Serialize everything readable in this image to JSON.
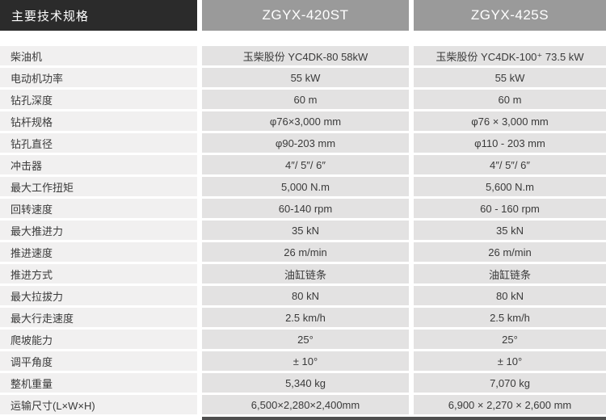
{
  "header": {
    "title": "主要技术规格",
    "columns": [
      "ZGYX-420ST",
      "ZGYX-425S"
    ],
    "title_bg": "#2b2b2b",
    "column_bg": "#9a9a9a"
  },
  "colors": {
    "label_cell_bg": "#f1f0f0",
    "value_cell_bg": "#e3e2e2",
    "text": "#3a3a3a",
    "bottom_bar": "#4f4f4f"
  },
  "rows": [
    {
      "label": "柴油机",
      "values": [
        "玉柴股份 YC4DK-80  58kW",
        "玉柴股份 YC4DK-100⁺ 73.5 kW"
      ]
    },
    {
      "label": "电动机功率",
      "values": [
        "55 kW",
        "55 kW"
      ]
    },
    {
      "label": "钻孔深度",
      "values": [
        "60 m",
        "60 m"
      ]
    },
    {
      "label": "钻杆规格",
      "values": [
        "φ76×3,000 mm",
        "φ76 × 3,000 mm"
      ]
    },
    {
      "label": "钻孔直径",
      "values": [
        "φ90-203 mm",
        "φ110 - 203 mm"
      ]
    },
    {
      "label": "冲击器",
      "values": [
        "4″/ 5″/ 6″",
        "4″/ 5″/ 6″"
      ]
    },
    {
      "label": "最大工作扭矩",
      "values": [
        "5,000 N.m",
        "5,600 N.m"
      ]
    },
    {
      "label": "回转速度",
      "values": [
        "60-140 rpm",
        "60 - 160 rpm"
      ]
    },
    {
      "label": "最大推进力",
      "values": [
        "35 kN",
        "35 kN"
      ]
    },
    {
      "label": "推进速度",
      "values": [
        "26 m/min",
        "26 m/min"
      ]
    },
    {
      "label": "推进方式",
      "values": [
        "油缸链条",
        "油缸链条"
      ]
    },
    {
      "label": "最大拉拔力",
      "values": [
        "80 kN",
        "80 kN"
      ]
    },
    {
      "label": "最大行走速度",
      "values": [
        "2.5 km/h",
        "2.5 km/h"
      ]
    },
    {
      "label": "爬坡能力",
      "values": [
        "25°",
        "25°"
      ]
    },
    {
      "label": "调平角度",
      "values": [
        "± 10°",
        "± 10°"
      ]
    },
    {
      "label": "整机重量",
      "values": [
        "5,340 kg",
        "7,070 kg"
      ]
    },
    {
      "label": "运输尺寸(L×W×H)",
      "values": [
        "6,500×2,280×2,400mm",
        "6,900 × 2,270 × 2,600 mm"
      ]
    }
  ]
}
